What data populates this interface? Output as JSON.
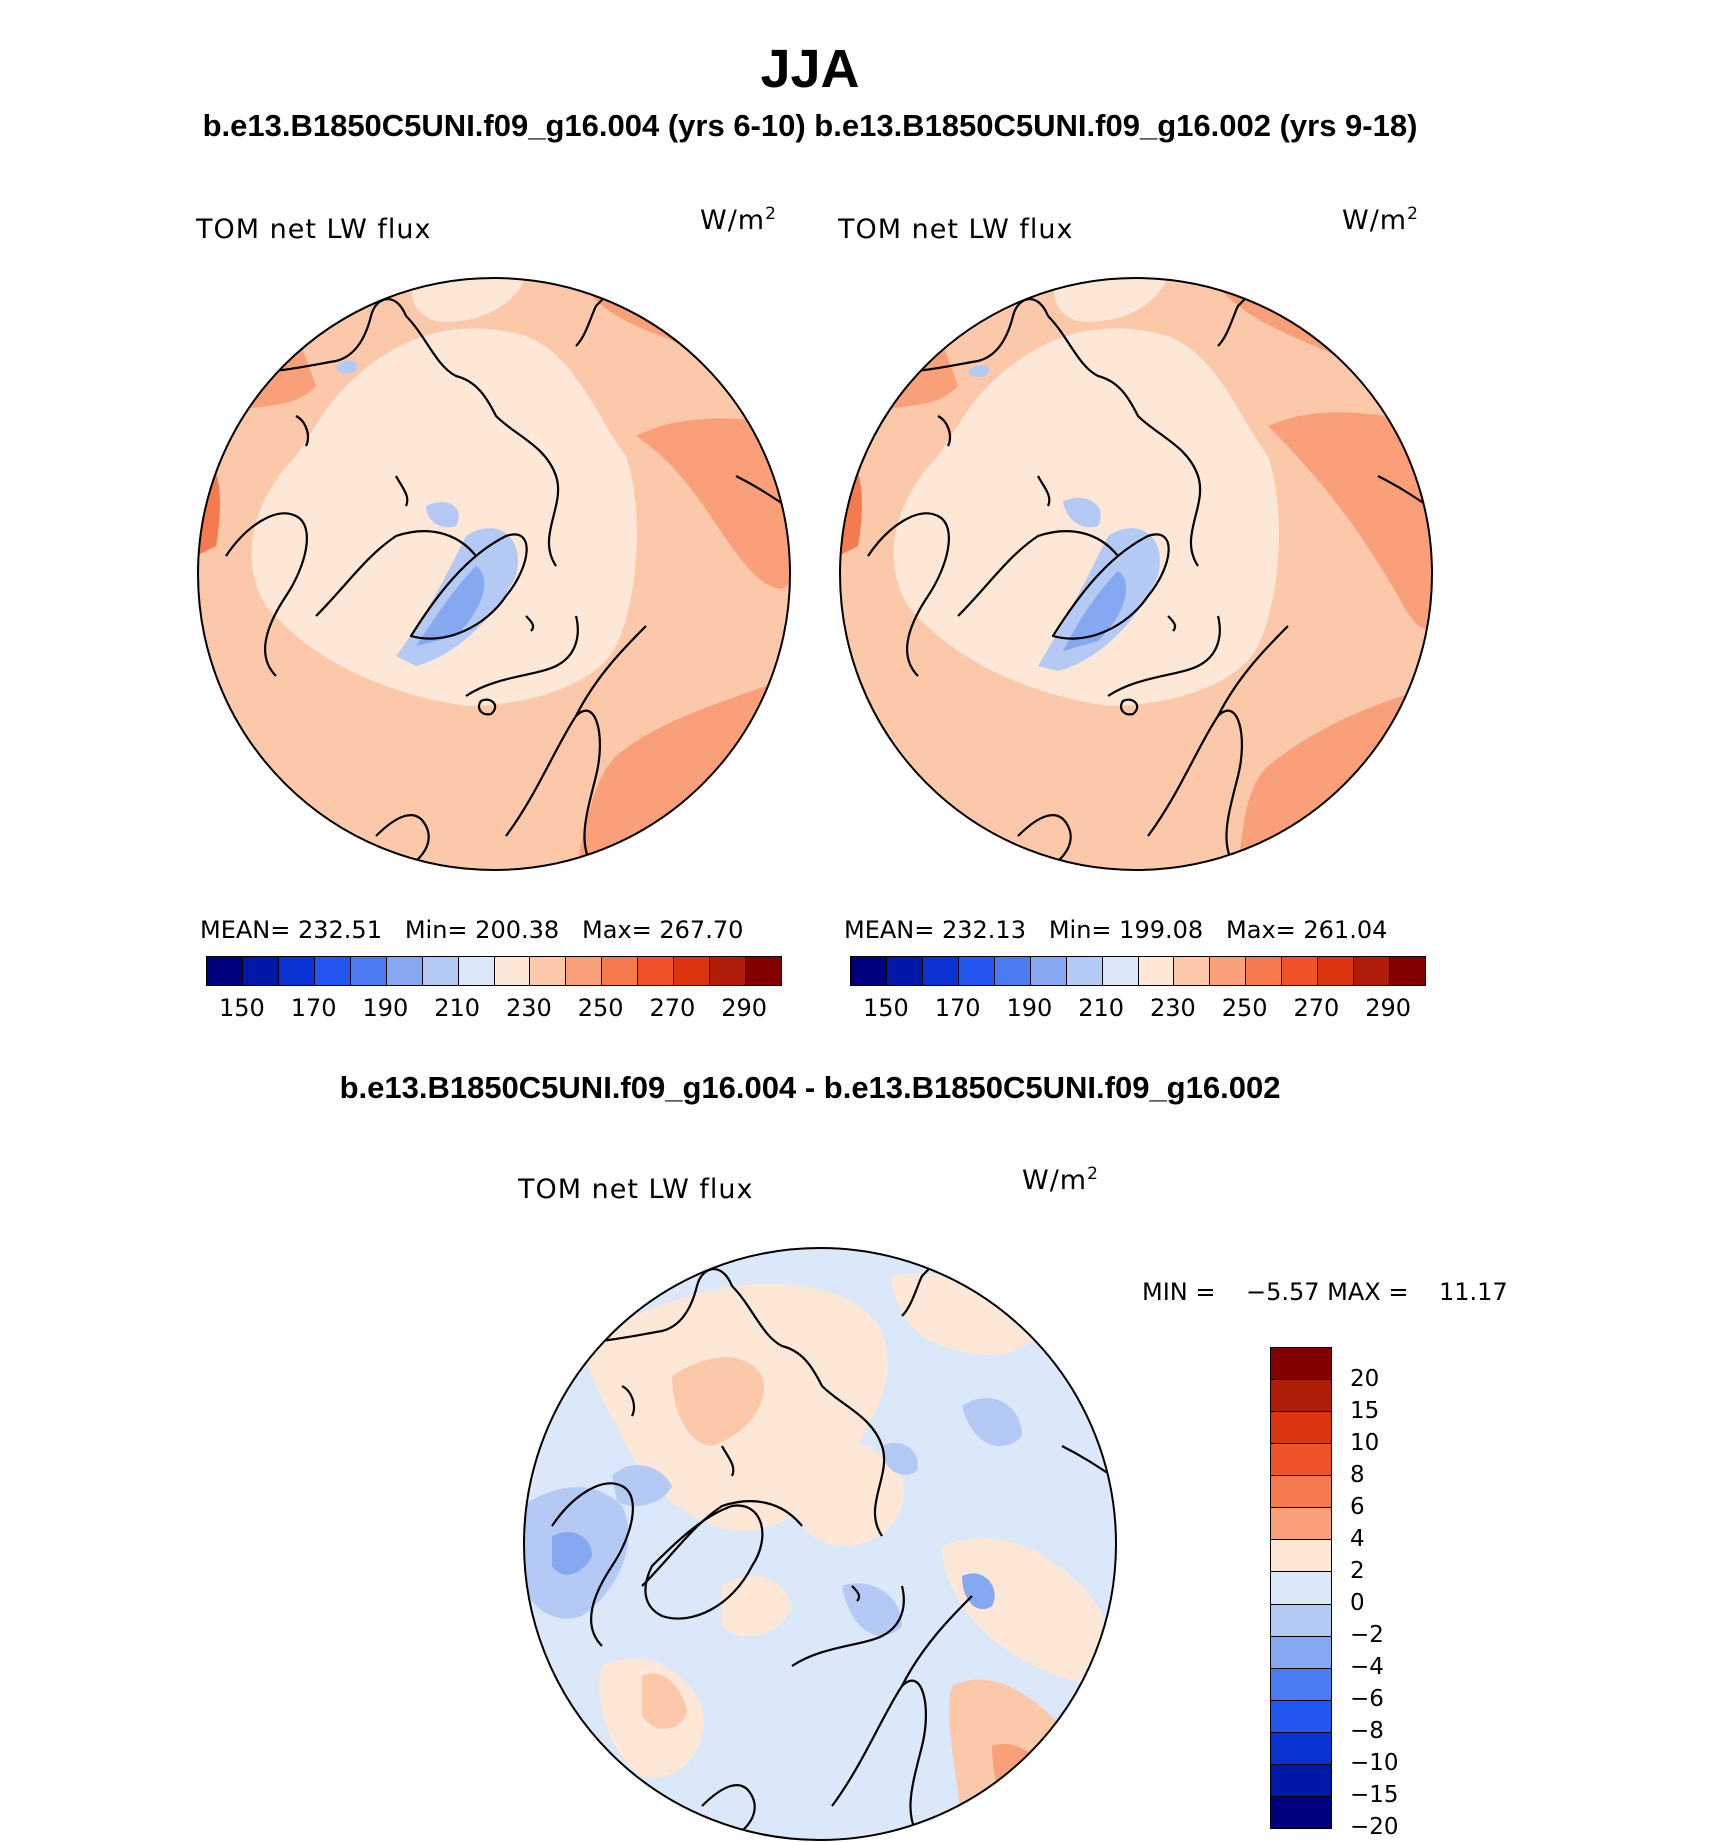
{
  "title": "JJA",
  "subtitle_top": "b.e13.B1850C5UNI.f09_g16.004 (yrs 6-10) b.e13.B1850C5UNI.f09_g16.002 (yrs 9-18)",
  "subtitle_diff": "b.e13.B1850C5UNI.f09_g16.004 - b.e13.B1850C5UNI.f09_g16.002",
  "panels": [
    {
      "variable": "TOM net LW flux",
      "units_base": "W/m",
      "units_exp": "2",
      "stats": "MEAN= 232.51   Min= 200.38   Max= 267.70",
      "colorbar": {
        "colors": [
          "#00007f",
          "#0018a8",
          "#0a32d2",
          "#2156f0",
          "#4a7bf0",
          "#85a8f0",
          "#b4caf5",
          "#dbe8fa",
          "#fde7d6",
          "#fbc8aa",
          "#f9a07a",
          "#f57a4e",
          "#f0522a",
          "#da3410",
          "#b01c0a",
          "#840000"
        ],
        "ticks": [
          "150",
          "170",
          "190",
          "210",
          "230",
          "250",
          "270",
          "290"
        ]
      }
    },
    {
      "variable": "TOM net LW flux",
      "units_base": "W/m",
      "units_exp": "2",
      "stats": "MEAN= 232.13   Min= 199.08   Max= 261.04",
      "colorbar": {
        "colors": [
          "#00007f",
          "#0018a8",
          "#0a32d2",
          "#2156f0",
          "#4a7bf0",
          "#85a8f0",
          "#b4caf5",
          "#dbe8fa",
          "#fde7d6",
          "#fbc8aa",
          "#f9a07a",
          "#f57a4e",
          "#f0522a",
          "#da3410",
          "#b01c0a",
          "#840000"
        ],
        "ticks": [
          "150",
          "170",
          "190",
          "210",
          "230",
          "250",
          "270",
          "290"
        ]
      }
    },
    {
      "variable": "TOM net LW flux",
      "units_base": "W/m",
      "units_exp": "2",
      "stats": "MIN =    −5.57 MAX =    11.17",
      "colorbar": {
        "colors": [
          "#840000",
          "#b01c0a",
          "#da3410",
          "#f0522a",
          "#f57a4e",
          "#f9a07a",
          "#fde7d6",
          "#dbe8fa",
          "#b4caf5",
          "#85a8f0",
          "#4a7bf0",
          "#2156f0",
          "#0a32d2",
          "#0018a8",
          "#00007f"
        ],
        "ticks": [
          "20",
          "15",
          "10",
          "8",
          "6",
          "4",
          "2",
          "0",
          "−2",
          "−4",
          "−6",
          "−8",
          "−10",
          "−15",
          "−20"
        ]
      }
    }
  ]
}
